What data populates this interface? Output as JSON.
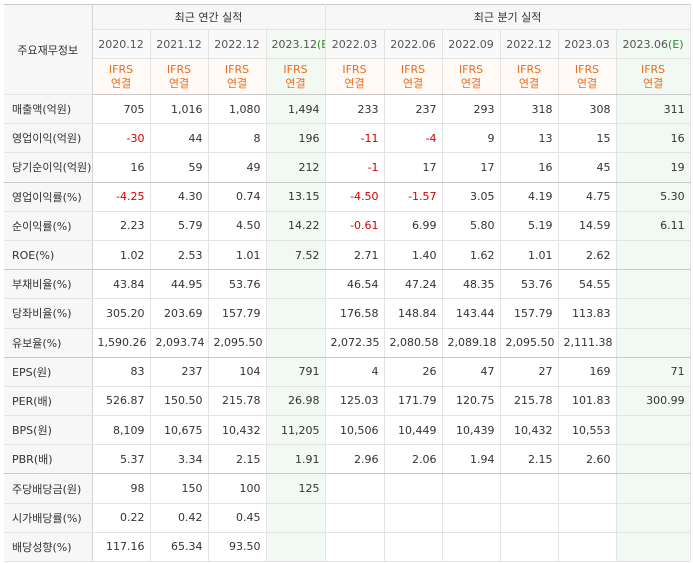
{
  "header": {
    "corner": "주요재무정보",
    "annual_title": "최근 연간 실적",
    "quarter_title": "최근 분기 실적",
    "annual_periods": [
      "2020.12",
      "2021.12",
      "2022.12",
      "2023.12(E)"
    ],
    "quarter_periods": [
      "2022.03",
      "2022.06",
      "2022.09",
      "2022.12",
      "2023.03",
      "2023.06(E)"
    ],
    "standard_line1": "IFRS",
    "standard_line2": "연결"
  },
  "rows": [
    {
      "label": "매출액(억원)",
      "values": [
        "705",
        "1,016",
        "1,080",
        "1,494",
        "233",
        "237",
        "293",
        "318",
        "308",
        "311"
      ]
    },
    {
      "label": "영업이익(억원)",
      "values": [
        "-30",
        "44",
        "8",
        "196",
        "-11",
        "-4",
        "9",
        "13",
        "15",
        "16"
      ]
    },
    {
      "label": "당기순이익(억원)",
      "values": [
        "16",
        "59",
        "49",
        "212",
        "-1",
        "17",
        "17",
        "16",
        "45",
        "19"
      ]
    },
    {
      "label": "영업이익률(%)",
      "values": [
        "-4.25",
        "4.30",
        "0.74",
        "13.15",
        "-4.50",
        "-1.57",
        "3.05",
        "4.19",
        "4.75",
        "5.30"
      ]
    },
    {
      "label": "순이익률(%)",
      "values": [
        "2.23",
        "5.79",
        "4.50",
        "14.22",
        "-0.61",
        "6.99",
        "5.80",
        "5.19",
        "14.59",
        "6.11"
      ]
    },
    {
      "label": "ROE(%)",
      "values": [
        "1.02",
        "2.53",
        "1.01",
        "7.52",
        "2.71",
        "1.40",
        "1.62",
        "1.01",
        "2.62",
        ""
      ]
    },
    {
      "label": "부채비율(%)",
      "values": [
        "43.84",
        "44.95",
        "53.76",
        "",
        "46.54",
        "47.24",
        "48.35",
        "53.76",
        "54.55",
        ""
      ]
    },
    {
      "label": "당좌비율(%)",
      "values": [
        "305.20",
        "203.69",
        "157.79",
        "",
        "176.58",
        "148.84",
        "143.44",
        "157.79",
        "113.83",
        ""
      ]
    },
    {
      "label": "유보율(%)",
      "values": [
        "1,590.26",
        "2,093.74",
        "2,095.50",
        "",
        "2,072.35",
        "2,080.58",
        "2,089.18",
        "2,095.50",
        "2,111.38",
        ""
      ]
    },
    {
      "label": "EPS(원)",
      "values": [
        "83",
        "237",
        "104",
        "791",
        "4",
        "26",
        "47",
        "27",
        "169",
        "71"
      ]
    },
    {
      "label": "PER(배)",
      "values": [
        "526.87",
        "150.50",
        "215.78",
        "26.98",
        "125.03",
        "171.79",
        "120.75",
        "215.78",
        "101.83",
        "300.99"
      ]
    },
    {
      "label": "BPS(원)",
      "values": [
        "8,109",
        "10,675",
        "10,432",
        "11,205",
        "10,506",
        "10,449",
        "10,439",
        "10,432",
        "10,553",
        ""
      ]
    },
    {
      "label": "PBR(배)",
      "values": [
        "5.37",
        "3.34",
        "2.15",
        "1.91",
        "2.96",
        "2.06",
        "1.94",
        "2.15",
        "2.60",
        ""
      ]
    },
    {
      "label": "주당배당금(원)",
      "values": [
        "98",
        "150",
        "100",
        "125",
        "",
        "",
        "",
        "",
        "",
        ""
      ]
    },
    {
      "label": "시가배당률(%)",
      "values": [
        "0.22",
        "0.42",
        "0.45",
        "",
        "",
        "",
        "",
        "",
        "",
        ""
      ]
    },
    {
      "label": "배당성향(%)",
      "values": [
        "117.16",
        "65.34",
        "93.50",
        "",
        "",
        "",
        "",
        "",
        "",
        ""
      ]
    }
  ],
  "colors": {
    "negative": "#d60000",
    "ifrs": "#ec6d1d",
    "estimate_bg": "#f2f9f2"
  }
}
